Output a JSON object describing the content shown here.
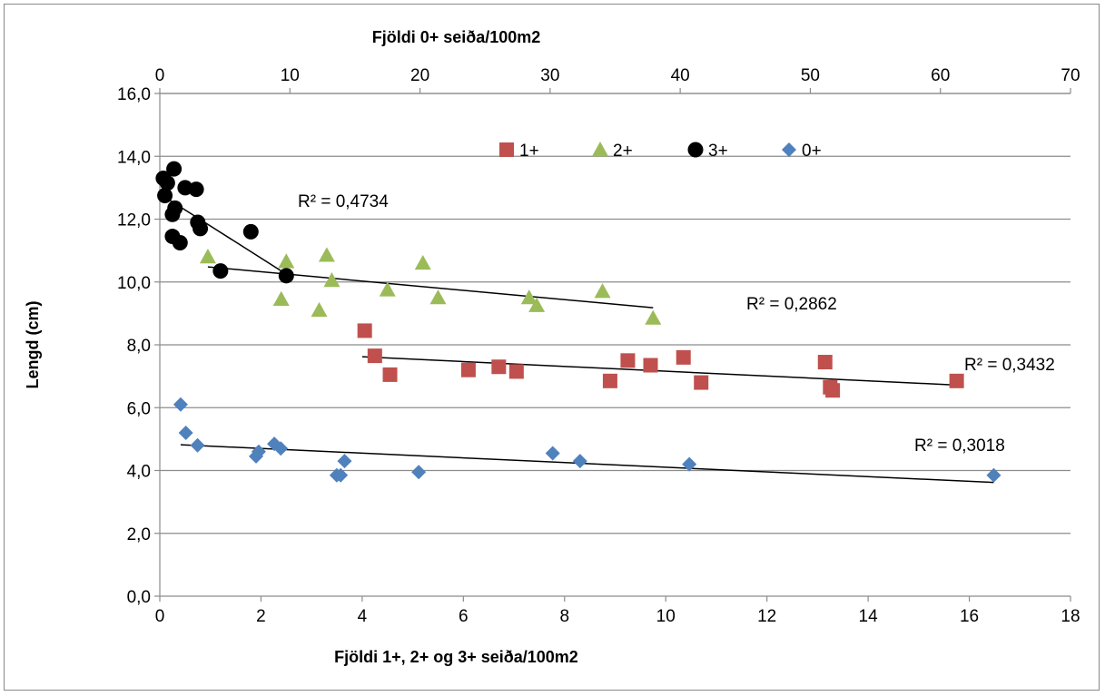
{
  "chart_data": {
    "type": "scatter",
    "title": "",
    "xlabel_bottom": "Fjöldi 1+, 2+ og 3+ seiða/100m2",
    "xlabel_top": "Fjöldi 0+ seiða/100m2",
    "ylabel": "Lengd (cm)",
    "xlim_bottom": [
      0,
      18
    ],
    "xlim_top": [
      0,
      70
    ],
    "ylim": [
      0,
      16
    ],
    "xticks_bottom": [
      "0",
      "2",
      "4",
      "6",
      "8",
      "10",
      "12",
      "14",
      "16",
      "18"
    ],
    "xticks_top": [
      "0",
      "10",
      "20",
      "30",
      "40",
      "50",
      "60",
      "70"
    ],
    "yticks": [
      "0,0",
      "2,0",
      "4,0",
      "6,0",
      "8,0",
      "10,0",
      "12,0",
      "14,0",
      "16,0"
    ],
    "grid": "horizontal",
    "legend_position": "top-center",
    "series": [
      {
        "name": "1+",
        "axis": "bottom",
        "marker": "square",
        "color": "#C0504D",
        "points": [
          [
            4.05,
            8.45
          ],
          [
            4.25,
            7.65
          ],
          [
            4.55,
            7.05
          ],
          [
            6.1,
            7.2
          ],
          [
            6.7,
            7.3
          ],
          [
            7.05,
            7.15
          ],
          [
            8.9,
            6.85
          ],
          [
            9.25,
            7.5
          ],
          [
            9.7,
            7.35
          ],
          [
            10.35,
            7.6
          ],
          [
            10.7,
            6.8
          ],
          [
            13.15,
            7.45
          ],
          [
            13.25,
            6.65
          ],
          [
            13.3,
            6.55
          ],
          [
            15.75,
            6.85
          ]
        ],
        "trendline": {
          "x": [
            4.0,
            15.75
          ],
          "y": [
            7.62,
            6.72
          ]
        },
        "r2_label": "R² = 0,3432"
      },
      {
        "name": "2+",
        "axis": "bottom",
        "marker": "triangle",
        "color": "#9BBB59",
        "points": [
          [
            0.95,
            10.8
          ],
          [
            2.4,
            9.45
          ],
          [
            2.5,
            10.65
          ],
          [
            3.15,
            9.1
          ],
          [
            3.3,
            10.85
          ],
          [
            3.4,
            10.05
          ],
          [
            4.5,
            9.75
          ],
          [
            5.2,
            10.6
          ],
          [
            5.5,
            9.5
          ],
          [
            7.3,
            9.5
          ],
          [
            7.45,
            9.25
          ],
          [
            8.75,
            9.7
          ],
          [
            9.75,
            8.85
          ]
        ],
        "trendline": {
          "x": [
            0.95,
            9.75
          ],
          "y": [
            10.48,
            9.18
          ]
        },
        "r2_label": "R² = 0,2862"
      },
      {
        "name": "3+",
        "axis": "bottom",
        "marker": "circle",
        "color": "#000000",
        "points": [
          [
            0.07,
            13.3
          ],
          [
            0.1,
            12.75
          ],
          [
            0.15,
            13.15
          ],
          [
            0.25,
            11.45
          ],
          [
            0.25,
            12.15
          ],
          [
            0.28,
            13.6
          ],
          [
            0.3,
            12.35
          ],
          [
            0.4,
            11.25
          ],
          [
            0.5,
            13.0
          ],
          [
            0.72,
            12.95
          ],
          [
            0.75,
            11.9
          ],
          [
            0.8,
            11.7
          ],
          [
            1.2,
            10.35
          ],
          [
            1.8,
            11.6
          ],
          [
            2.5,
            10.2
          ]
        ],
        "trendline": {
          "x": [
            0.2,
            2.5
          ],
          "y": [
            12.6,
            10.25
          ]
        },
        "r2_label": "R² = 0,4734"
      },
      {
        "name": "0+",
        "axis": "top",
        "marker": "diamond",
        "color": "#4F81BD",
        "points": [
          [
            1.6,
            6.1
          ],
          [
            2.0,
            5.2
          ],
          [
            2.9,
            4.8
          ],
          [
            7.4,
            4.45
          ],
          [
            7.6,
            4.6
          ],
          [
            8.8,
            4.85
          ],
          [
            9.3,
            4.7
          ],
          [
            13.6,
            3.85
          ],
          [
            13.9,
            3.85
          ],
          [
            14.2,
            4.3
          ],
          [
            19.9,
            3.95
          ],
          [
            30.2,
            4.55
          ],
          [
            32.3,
            4.3
          ],
          [
            40.7,
            4.2
          ],
          [
            64.1,
            3.85
          ]
        ],
        "trendline": {
          "x": [
            1.6,
            64.1
          ],
          "y": [
            4.82,
            3.62
          ]
        },
        "r2_label": "R² = 0,3018"
      }
    ]
  }
}
